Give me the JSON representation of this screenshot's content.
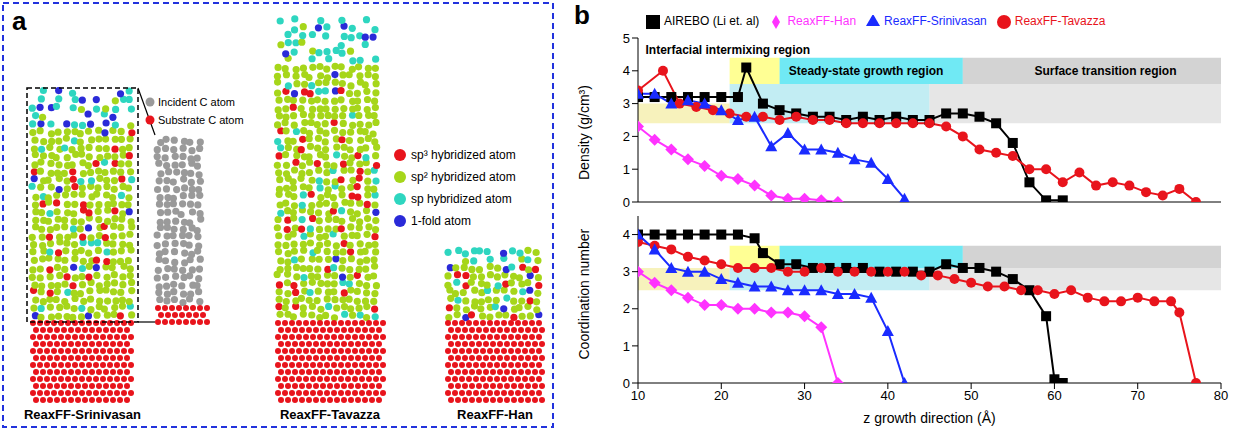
{
  "panel_a": {
    "letter": "a",
    "atom_legend": [
      {
        "label": "sp³ hybridized atom",
        "color": "#e8141c"
      },
      {
        "label": "sp² hybridized atom",
        "color": "#a6d61a"
      },
      {
        "label": "sp hybridized atom",
        "color": "#2ed6c0"
      },
      {
        "label": "1-fold atom",
        "color": "#2a2ad8"
      }
    ],
    "inset_legend": [
      {
        "label": "Incident C atom",
        "color": "#9a9a9a"
      },
      {
        "label": "Substrate C atom",
        "color": "#e8141c"
      }
    ],
    "columns": [
      "ReaxFF-Srinivasan",
      "ReaxFF-Tavazza",
      "ReaxFF-Han"
    ]
  },
  "chart_data": [
    {
      "letter": "b",
      "type": "line",
      "ylabel": "Density (g/cm³)",
      "xlim": [
        10,
        80
      ],
      "xticks": [
        10,
        20,
        30,
        40,
        50,
        60,
        70,
        80
      ],
      "ylim": [
        0,
        5
      ],
      "yticks": [
        0,
        1,
        2,
        3,
        4,
        5
      ],
      "tick_labels": "y",
      "legend": "top",
      "series": [
        {
          "name": "AIREBO (Li et. al)",
          "color": "#000000",
          "marker": "square",
          "x": [
            10,
            12,
            14,
            16,
            18,
            20,
            22,
            23,
            25,
            27,
            29,
            31,
            33,
            35,
            37,
            39,
            41,
            43,
            45,
            47,
            49,
            51,
            53,
            55,
            57,
            59,
            61
          ],
          "values": [
            3.2,
            3.2,
            3.2,
            3.2,
            3.2,
            3.2,
            3.2,
            4.1,
            3.0,
            2.8,
            2.7,
            2.6,
            2.6,
            2.5,
            2.6,
            2.5,
            2.6,
            2.5,
            2.5,
            2.7,
            2.7,
            2.6,
            2.4,
            1.8,
            0.6,
            0.05,
            0.05
          ]
        },
        {
          "name": "ReaxFF-Tavazza",
          "color": "#e8141c",
          "marker": "circle",
          "x": [
            10,
            13,
            15,
            17,
            19,
            21,
            23,
            25,
            27,
            29,
            31,
            33,
            35,
            37,
            39,
            41,
            43,
            45,
            47,
            49,
            51,
            53,
            55,
            57,
            59,
            61,
            63,
            65,
            67,
            69,
            71,
            73,
            75,
            77
          ],
          "values": [
            3.4,
            4.0,
            3.0,
            2.9,
            2.8,
            2.7,
            2.6,
            2.6,
            2.5,
            2.6,
            2.5,
            2.5,
            2.4,
            2.4,
            2.4,
            2.4,
            2.4,
            2.4,
            2.3,
            2.0,
            1.6,
            1.5,
            1.4,
            1.0,
            1.0,
            0.6,
            0.9,
            0.5,
            0.6,
            0.5,
            0.3,
            0.2,
            0.4,
            0.0
          ]
        },
        {
          "name": "ReaxFF-Srinivasan",
          "color": "#1a2bff",
          "marker": "triangle",
          "x": [
            10,
            12,
            14,
            16,
            18,
            20,
            22,
            24,
            26,
            28,
            30,
            32,
            34,
            36,
            38,
            40,
            42
          ],
          "values": [
            3.3,
            3.3,
            3.0,
            3.1,
            3.0,
            2.8,
            2.5,
            2.6,
            1.7,
            2.1,
            1.6,
            1.6,
            1.5,
            1.3,
            1.2,
            0.7,
            0.1
          ]
        },
        {
          "name": "ReaxFF-Han",
          "color": "#ff33ff",
          "marker": "diamond",
          "x": [
            10,
            12,
            14,
            16,
            18,
            20,
            22,
            24,
            26,
            28,
            30,
            32,
            34
          ],
          "values": [
            2.3,
            1.9,
            1.6,
            1.3,
            1.1,
            0.8,
            0.7,
            0.5,
            0.2,
            0.1,
            0.1,
            0.05,
            0.0
          ]
        }
      ],
      "regions": [
        {
          "x": [
            10,
            21
          ],
          "y": [
            2.4,
            3.0
          ],
          "color": "#f3eda0"
        },
        {
          "x": [
            21,
            45
          ],
          "y": [
            2.4,
            3.6
          ],
          "color": "#a8e6ee"
        },
        {
          "x": [
            45,
            80
          ],
          "y": [
            2.4,
            3.6
          ],
          "color": "#dcdcdc"
        },
        {
          "x": [
            21,
            27
          ],
          "y": [
            3.6,
            4.4
          ],
          "color": "#ffff66"
        },
        {
          "x": [
            27,
            49
          ],
          "y": [
            3.6,
            4.4
          ],
          "color": "#33e0f0"
        },
        {
          "x": [
            49,
            80
          ],
          "y": [
            3.6,
            4.4
          ],
          "color": "#c0c0c0"
        }
      ],
      "annotations": [
        {
          "text": "Interfacial intermixing region",
          "x": 10.3,
          "y": 4.65
        },
        {
          "text": "Steady-state growth region",
          "x": 27.5,
          "y": 4.0
        },
        {
          "text": "Surface transition region",
          "x": 57,
          "y": 4.0
        }
      ]
    },
    {
      "type": "line",
      "xlabel": "z growth direction (Å)",
      "ylabel": "Coordination number",
      "xlim": [
        10,
        80
      ],
      "xticks": [
        10,
        20,
        30,
        40,
        50,
        60,
        70,
        80
      ],
      "ylim": [
        0,
        4.5
      ],
      "yticks": [
        0,
        1,
        2,
        3,
        4
      ],
      "series": [
        {
          "name": "AIREBO (Li et. al)",
          "color": "#000000",
          "marker": "square",
          "x": [
            10,
            12,
            14,
            16,
            18,
            20,
            22,
            24,
            25,
            27,
            29,
            31,
            33,
            35,
            37,
            39,
            41,
            43,
            45,
            47,
            49,
            51,
            53,
            55,
            57,
            59,
            60,
            61
          ],
          "values": [
            4.0,
            4.0,
            4.0,
            4.0,
            4.0,
            4.0,
            4.0,
            3.9,
            3.5,
            3.2,
            3.2,
            3.1,
            3.1,
            3.1,
            3.1,
            3.0,
            3.0,
            3.0,
            3.0,
            3.2,
            3.1,
            3.1,
            3.0,
            2.8,
            2.5,
            1.8,
            0.1,
            0.0
          ]
        },
        {
          "name": "ReaxFF-Tavazza",
          "color": "#e8141c",
          "marker": "circle",
          "x": [
            10,
            12,
            14,
            16,
            18,
            20,
            22,
            24,
            26,
            28,
            30,
            32,
            34,
            36,
            38,
            40,
            42,
            44,
            46,
            48,
            50,
            52,
            54,
            56,
            58,
            60,
            62,
            64,
            66,
            68,
            70,
            72,
            74,
            75,
            77
          ],
          "values": [
            3.8,
            3.7,
            3.6,
            3.4,
            3.3,
            3.2,
            3.1,
            3.1,
            3.1,
            3.0,
            3.0,
            3.1,
            3.0,
            3.0,
            3.0,
            3.0,
            3.0,
            2.9,
            2.9,
            2.8,
            2.7,
            2.6,
            2.6,
            2.5,
            2.5,
            2.4,
            2.5,
            2.3,
            2.2,
            2.2,
            2.3,
            2.2,
            2.2,
            1.9,
            0.0
          ]
        },
        {
          "name": "ReaxFF-Srinivasan",
          "color": "#1a2bff",
          "marker": "triangle",
          "x": [
            10,
            12,
            14,
            16,
            18,
            20,
            22,
            24,
            26,
            28,
            30,
            32,
            34,
            36,
            38,
            40,
            42
          ],
          "values": [
            4.0,
            3.6,
            3.1,
            3.0,
            3.0,
            2.8,
            2.7,
            2.6,
            2.6,
            2.5,
            2.5,
            2.5,
            2.4,
            2.4,
            2.3,
            1.4,
            0.0
          ]
        },
        {
          "name": "ReaxFF-Han",
          "color": "#ff33ff",
          "marker": "diamond",
          "x": [
            10,
            12,
            14,
            16,
            18,
            20,
            22,
            24,
            26,
            28,
            30,
            32,
            34
          ],
          "values": [
            3.0,
            2.7,
            2.5,
            2.3,
            2.1,
            2.1,
            2.0,
            2.0,
            1.9,
            1.9,
            1.8,
            1.5,
            0.0
          ]
        }
      ],
      "regions": [
        {
          "x": [
            10,
            21
          ],
          "y": [
            2.5,
            3.1
          ],
          "color": "#f3eda0"
        },
        {
          "x": [
            21,
            45
          ],
          "y": [
            2.5,
            3.1
          ],
          "color": "#a8e6ee"
        },
        {
          "x": [
            45,
            80
          ],
          "y": [
            2.5,
            3.1
          ],
          "color": "#dcdcdc"
        },
        {
          "x": [
            21,
            27
          ],
          "y": [
            3.1,
            3.7
          ],
          "color": "#ffff66"
        },
        {
          "x": [
            27,
            49
          ],
          "y": [
            3.1,
            3.7
          ],
          "color": "#33e0f0"
        },
        {
          "x": [
            49,
            80
          ],
          "y": [
            3.1,
            3.7
          ],
          "color": "#c0c0c0"
        }
      ]
    }
  ]
}
